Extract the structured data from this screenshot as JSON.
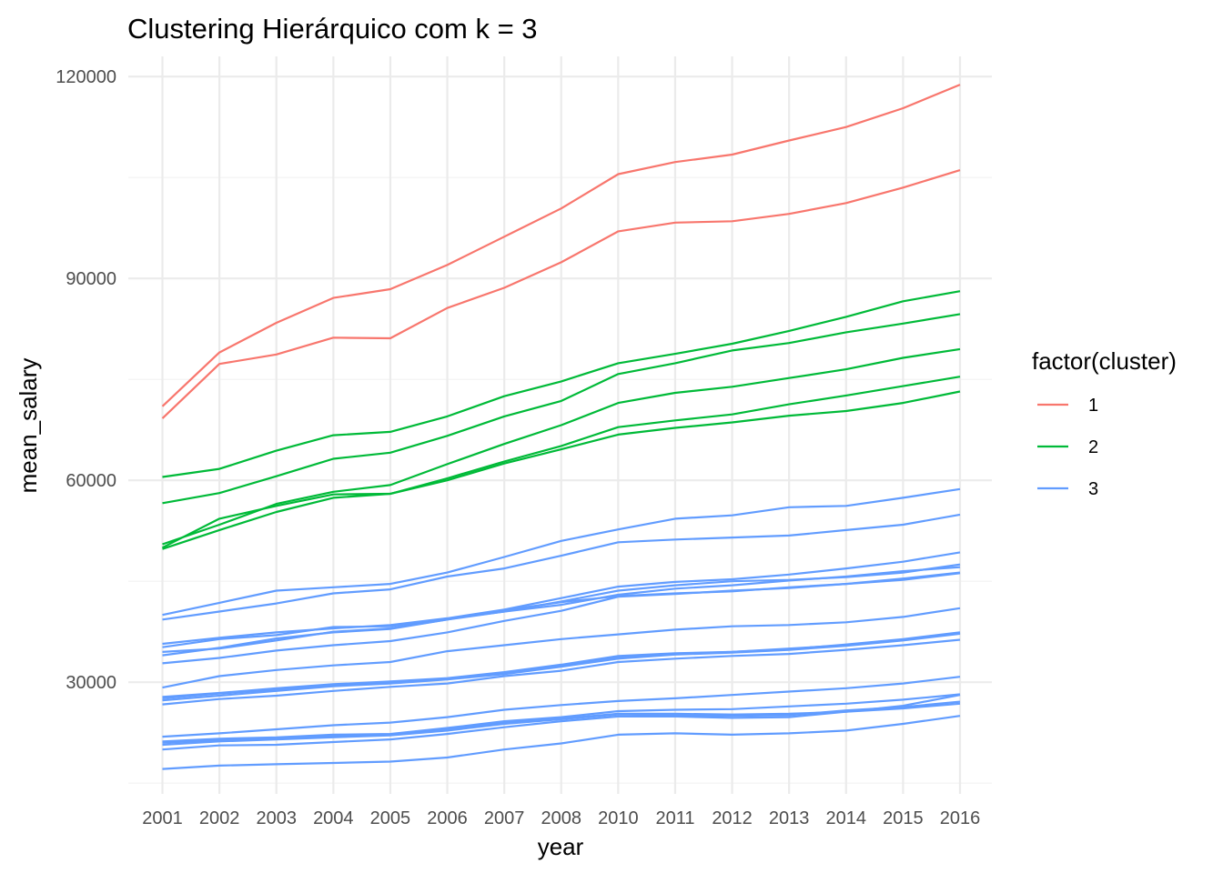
{
  "chart_data": {
    "type": "line",
    "title": "Clustering Hierárquico com k = 3",
    "xlabel": "year",
    "ylabel": "mean_salary",
    "categories": [
      "2001",
      "2002",
      "2003",
      "2004",
      "2005",
      "2006",
      "2007",
      "2008",
      "2010",
      "2011",
      "2012",
      "2013",
      "2014",
      "2015",
      "2016"
    ],
    "y_ticks": [
      30000,
      60000,
      90000,
      120000
    ],
    "y_tick_labels": [
      "30000",
      "60000",
      "90000",
      "120000"
    ],
    "ylim": [
      13400,
      123000
    ],
    "grid": true,
    "legend": {
      "title": "factor(cluster)",
      "position": "right",
      "entries": [
        {
          "label": "1",
          "color": "#F8766D"
        },
        {
          "label": "2",
          "color": "#00BA38"
        },
        {
          "label": "3",
          "color": "#619CFF"
        }
      ]
    },
    "series": [
      {
        "cluster": "1",
        "values": [
          71000,
          79000,
          83400,
          87100,
          88400,
          92000,
          96200,
          100400,
          105500,
          107300,
          108400,
          110500,
          112500,
          115300,
          118800
        ]
      },
      {
        "cluster": "1",
        "values": [
          69200,
          77300,
          78700,
          81200,
          81100,
          85600,
          88600,
          92400,
          97000,
          98300,
          98500,
          99600,
          101200,
          103500,
          106100
        ]
      },
      {
        "cluster": "2",
        "values": [
          60500,
          61700,
          64400,
          66700,
          67200,
          69500,
          72500,
          74700,
          77400,
          78800,
          80300,
          82200,
          84300,
          86600,
          88100
        ]
      },
      {
        "cluster": "2",
        "values": [
          56600,
          58100,
          60600,
          63200,
          64100,
          66600,
          69500,
          71800,
          75800,
          77400,
          79300,
          80400,
          82000,
          83300,
          84700
        ]
      },
      {
        "cluster": "2",
        "values": [
          50500,
          53400,
          56500,
          58300,
          59300,
          62400,
          65400,
          68200,
          71500,
          73000,
          73900,
          75200,
          76500,
          78200,
          79500
        ]
      },
      {
        "cluster": "2",
        "values": [
          50000,
          54300,
          56200,
          57900,
          58000,
          60300,
          62800,
          65100,
          67900,
          68900,
          69800,
          71300,
          72600,
          74000,
          75400
        ]
      },
      {
        "cluster": "2",
        "values": [
          49800,
          52600,
          55300,
          57400,
          58000,
          60000,
          62500,
          64600,
          66800,
          67800,
          68600,
          69600,
          70300,
          71500,
          73200
        ]
      },
      {
        "cluster": "3",
        "values": [
          40000,
          41800,
          43600,
          44100,
          44600,
          46300,
          48600,
          51000,
          52700,
          54300,
          54800,
          56000,
          56200,
          57400,
          58700
        ]
      },
      {
        "cluster": "3",
        "values": [
          39300,
          40500,
          41700,
          43200,
          43800,
          45700,
          46900,
          48800,
          50800,
          51200,
          51500,
          51800,
          52600,
          53400,
          54900
        ]
      },
      {
        "cluster": "3",
        "values": [
          35700,
          36600,
          37400,
          38000,
          38500,
          39500,
          40800,
          42500,
          44200,
          44900,
          45300,
          46000,
          46900,
          47900,
          49300
        ]
      },
      {
        "cluster": "3",
        "values": [
          35200,
          36400,
          37000,
          38200,
          38300,
          39400,
          40500,
          42000,
          43600,
          44400,
          45000,
          45200,
          45600,
          46300,
          47500
        ]
      },
      {
        "cluster": "3",
        "values": [
          34500,
          35000,
          36200,
          37500,
          38000,
          39300,
          40500,
          41500,
          43000,
          43900,
          44400,
          45100,
          45700,
          46500,
          47100
        ]
      },
      {
        "cluster": "3",
        "values": [
          34000,
          35100,
          36500,
          37400,
          37900,
          39300,
          40700,
          41900,
          42800,
          43200,
          43500,
          44100,
          44600,
          45400,
          46300
        ]
      },
      {
        "cluster": "3",
        "values": [
          32800,
          33600,
          34700,
          35500,
          36100,
          37400,
          39100,
          40600,
          42700,
          43100,
          43600,
          44000,
          44600,
          45200,
          46200
        ]
      },
      {
        "cluster": "3",
        "values": [
          29200,
          30900,
          31800,
          32500,
          33000,
          34600,
          35500,
          36400,
          37100,
          37800,
          38300,
          38500,
          38900,
          39700,
          41000
        ]
      },
      {
        "cluster": "3",
        "values": [
          27800,
          28400,
          29100,
          29700,
          30100,
          30600,
          31500,
          32600,
          33900,
          34300,
          34500,
          34900,
          35600,
          36400,
          37400
        ]
      },
      {
        "cluster": "3",
        "values": [
          27600,
          28300,
          28900,
          29600,
          29900,
          30500,
          31300,
          32400,
          33700,
          34200,
          34500,
          35000,
          35500,
          36300,
          37300
        ]
      },
      {
        "cluster": "3",
        "values": [
          27300,
          28000,
          28700,
          29400,
          29800,
          30400,
          31200,
          32300,
          33500,
          34100,
          34400,
          34800,
          35400,
          36200,
          37200
        ]
      },
      {
        "cluster": "3",
        "values": [
          26700,
          27500,
          28000,
          28700,
          29300,
          29800,
          30900,
          31700,
          33000,
          33500,
          33900,
          34200,
          34800,
          35500,
          36300
        ]
      },
      {
        "cluster": "3",
        "values": [
          21900,
          22400,
          23000,
          23600,
          24000,
          24800,
          25900,
          26600,
          27200,
          27600,
          28100,
          28600,
          29100,
          29800,
          30800
        ]
      },
      {
        "cluster": "3",
        "values": [
          21200,
          21600,
          21800,
          22200,
          22300,
          23200,
          24200,
          24800,
          25700,
          25900,
          26000,
          26400,
          26800,
          27400,
          28200
        ]
      },
      {
        "cluster": "3",
        "values": [
          21000,
          21400,
          21600,
          22000,
          22200,
          23000,
          24000,
          24600,
          25300,
          25300,
          25200,
          25300,
          25600,
          26500,
          28100
        ]
      },
      {
        "cluster": "3",
        "values": [
          20700,
          21200,
          21500,
          21800,
          22100,
          22800,
          23800,
          24500,
          25200,
          25100,
          25000,
          25100,
          25800,
          26300,
          27100
        ]
      },
      {
        "cluster": "3",
        "values": [
          20000,
          20600,
          20700,
          21100,
          21500,
          22300,
          23300,
          24200,
          24900,
          24900,
          24700,
          24800,
          25600,
          26100,
          26800
        ]
      },
      {
        "cluster": "3",
        "values": [
          17100,
          17600,
          17800,
          18000,
          18200,
          18800,
          20000,
          20900,
          22200,
          22400,
          22200,
          22400,
          22800,
          23800,
          25000
        ]
      }
    ]
  }
}
